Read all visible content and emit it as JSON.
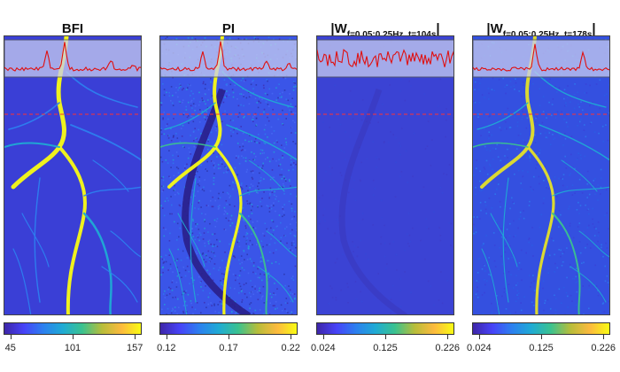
{
  "panels": [
    {
      "title": "BFI",
      "title_sub": "",
      "title_suffix": "",
      "colorbar_ticks": [
        "45",
        "101",
        "157"
      ],
      "style": "bfi"
    },
    {
      "title": "PI",
      "title_sub": "",
      "title_suffix": "",
      "colorbar_ticks": [
        "0.12",
        "0.17",
        "0.22"
      ],
      "style": "pi"
    },
    {
      "title": "|W",
      "title_sub": "f=0.05:0.25Hz, t=104s",
      "title_suffix": "|",
      "colorbar_ticks": [
        "0.024",
        "0.125",
        "0.226"
      ],
      "style": "w104"
    },
    {
      "title": "|W",
      "title_sub": "f=0.05:0.25Hz, t=178s",
      "title_suffix": "|",
      "colorbar_ticks": [
        "0.024",
        "0.125",
        "0.226"
      ],
      "style": "w178"
    }
  ],
  "colors": {
    "colormap": [
      "#3e26a8",
      "#4743f8",
      "#2c80ef",
      "#1fabd4",
      "#3bc28f",
      "#b7bd3a",
      "#fcba3e",
      "#f9fb14"
    ],
    "trace": "#e01010",
    "dashed_line": "#ff3030",
    "inset_fill": "#c8cdf0"
  }
}
